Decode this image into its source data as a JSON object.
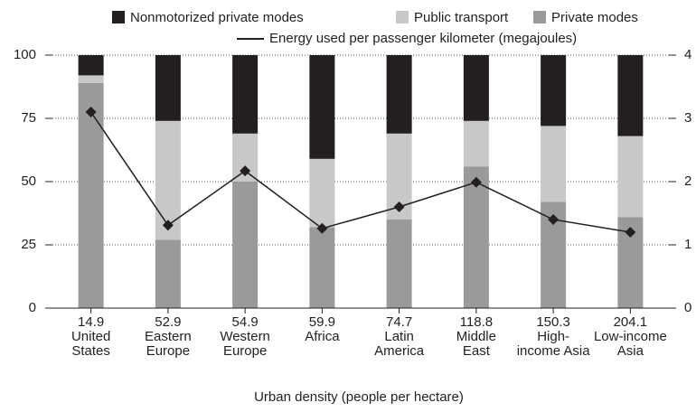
{
  "chart_data": {
    "type": "bar",
    "xlabel": "Urban density (people per hectare)",
    "categories": [
      [
        "14.9",
        "United",
        "States"
      ],
      [
        "52.9",
        "Eastern",
        "Europe"
      ],
      [
        "54.9",
        "Western",
        "Europe"
      ],
      [
        "59.9",
        "Africa"
      ],
      [
        "74.7",
        "Latin",
        "America"
      ],
      [
        "118.8",
        "Middle",
        "East"
      ],
      [
        "150.3",
        "High-",
        "income Asia"
      ],
      [
        "204.1",
        "Low-income",
        "Asia"
      ]
    ],
    "series": [
      {
        "name": "Nonmotorized private modes",
        "color": "#231f20",
        "values": [
          8,
          26,
          31,
          41,
          31,
          26,
          28,
          32
        ]
      },
      {
        "name": "Public transport",
        "color": "#c8c8c8",
        "values": [
          3,
          47,
          19,
          27,
          34,
          18,
          30,
          32
        ]
      },
      {
        "name": "Private modes",
        "color": "#9a9a9a",
        "values": [
          89,
          27,
          50,
          32,
          35,
          56,
          42,
          36
        ]
      },
      {
        "name": "Energy used per passenger kilometer (megajoules)",
        "type": "line",
        "axis": "y2",
        "color": "#231f20",
        "values": [
          3.1,
          1.31,
          2.17,
          1.26,
          1.6,
          1.99,
          1.4,
          1.2
        ]
      }
    ],
    "ylim": [
      0,
      100
    ],
    "yticks": [
      0,
      25,
      50,
      75,
      100
    ],
    "y2lim": [
      0,
      4
    ],
    "y2ticks": [
      0,
      1,
      2,
      3,
      4
    ],
    "grid": true
  }
}
